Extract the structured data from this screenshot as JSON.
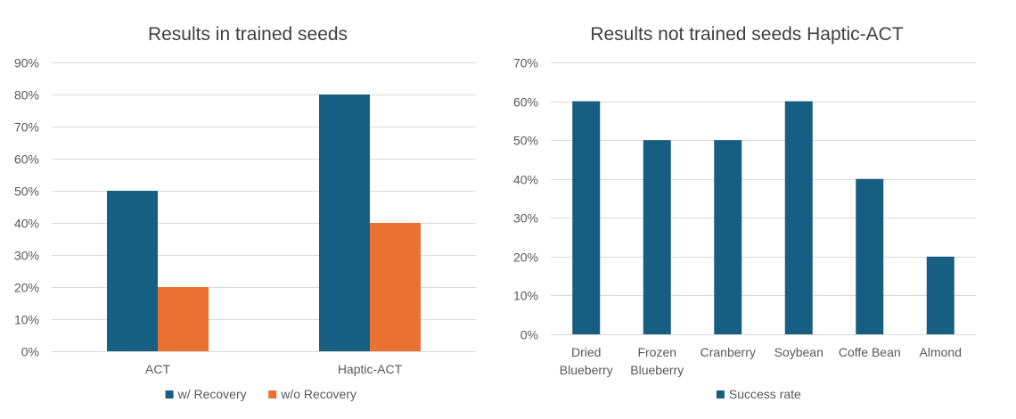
{
  "chart_data": [
    {
      "type": "bar",
      "title": "Results in trained seeds",
      "categories": [
        "ACT",
        "Haptic-ACT"
      ],
      "series": [
        {
          "name": "w/ Recovery",
          "values": [
            0.5,
            0.8
          ],
          "color": "#175F82"
        },
        {
          "name": "w/o Recovery",
          "values": [
            0.2,
            0.4
          ],
          "color": "#E97132"
        }
      ],
      "ylim": [
        0,
        0.9
      ],
      "yticks": [
        0,
        0.1,
        0.2,
        0.3,
        0.4,
        0.5,
        0.6,
        0.7,
        0.8,
        0.9
      ],
      "ytick_labels": [
        "0%",
        "10%",
        "20%",
        "30%",
        "40%",
        "50%",
        "60%",
        "70%",
        "80%",
        "90%"
      ],
      "grid": true,
      "legend": "bottom"
    },
    {
      "type": "bar",
      "title": "Results not trained seeds Haptic-ACT",
      "categories": [
        [
          "Dried",
          "Blueberry"
        ],
        [
          "Frozen",
          "Blueberry"
        ],
        [
          "Cranberry"
        ],
        [
          "Soybean"
        ],
        [
          "Coffe Bean"
        ],
        [
          "Almond"
        ]
      ],
      "series": [
        {
          "name": "Success rate",
          "values": [
            0.6,
            0.5,
            0.5,
            0.6,
            0.4,
            0.2
          ],
          "color": "#175F82"
        }
      ],
      "ylim": [
        0,
        0.7
      ],
      "yticks": [
        0,
        0.1,
        0.2,
        0.3,
        0.4,
        0.5,
        0.6,
        0.7
      ],
      "ytick_labels": [
        "0%",
        "10%",
        "20%",
        "30%",
        "40%",
        "50%",
        "60%",
        "70%"
      ],
      "grid": true,
      "legend": "bottom"
    }
  ]
}
